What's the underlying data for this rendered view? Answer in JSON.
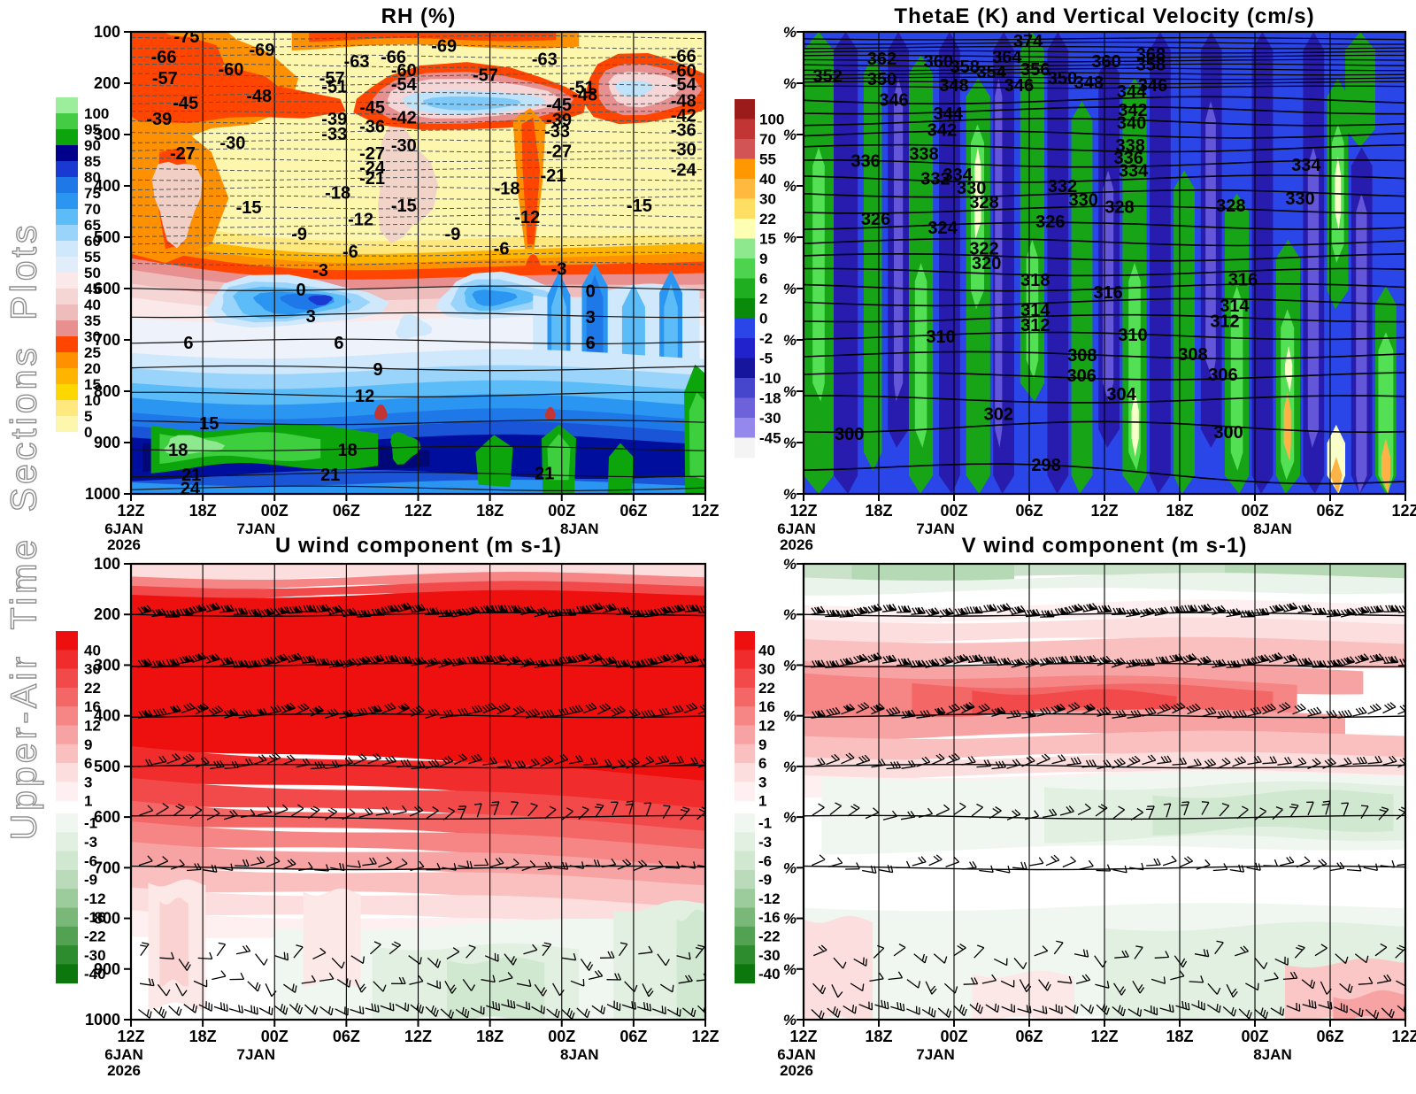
{
  "page": {
    "vertical_label": "Upper-Air Time Sections Plots"
  },
  "time_axis": {
    "ticks": [
      "12Z",
      "18Z",
      "00Z",
      "06Z",
      "12Z",
      "18Z",
      "00Z",
      "06Z",
      "12Z"
    ],
    "date_labels": [
      {
        "tick": 0,
        "text": "6JAN"
      },
      {
        "tick": 2,
        "text": "7JAN"
      },
      {
        "tick": 6,
        "text": "8JAN"
      }
    ],
    "year_label": {
      "tick": 0,
      "text": "2026"
    }
  },
  "pressure_ticks": [
    100,
    200,
    300,
    400,
    500,
    600,
    700,
    800,
    900,
    1000
  ],
  "chart_data": [
    {
      "id": "rh",
      "type": "filled-contour-time-height-section",
      "title": "RH (%)",
      "y_axis": "pressure-ticks",
      "x_axis": "time-ticks",
      "colorbar": {
        "labels": [
          100,
          95,
          90,
          85,
          80,
          75,
          70,
          65,
          60,
          55,
          50,
          45,
          40,
          35,
          30,
          25,
          20,
          15,
          10,
          5,
          0
        ],
        "colors": [
          "#9cee9c",
          "#44cc44",
          "#0ca60c",
          "#00008b",
          "#1939d2",
          "#1f78e8",
          "#2b96f2",
          "#5bbcf8",
          "#9ad4fa",
          "#cfe8fc",
          "#e2edfc",
          "#fbe9e9",
          "#f6d5d5",
          "#efbcbc",
          "#e89090",
          "#ff4500",
          "#ff9000",
          "#ffb400",
          "#ffd700",
          "#ffe97e",
          "#fdf7ae",
          "#ffffff"
        ]
      },
      "dashed_labels": [
        [
          -75,
          0.097,
          0.01
        ],
        [
          -69,
          0.228,
          0.038
        ],
        [
          -69,
          0.545,
          0.03
        ],
        [
          -66,
          0.057,
          0.054
        ],
        [
          -66,
          0.457,
          0.054
        ],
        [
          -66,
          0.962,
          0.052
        ],
        [
          -63,
          0.393,
          0.063
        ],
        [
          -63,
          0.72,
          0.058
        ],
        [
          -60,
          0.174,
          0.08
        ],
        [
          -60,
          0.475,
          0.082
        ],
        [
          -60,
          0.962,
          0.083
        ],
        [
          -57,
          0.059,
          0.1
        ],
        [
          -57,
          0.35,
          0.1
        ],
        [
          -57,
          0.617,
          0.093
        ],
        [
          -54,
          0.475,
          0.113
        ],
        [
          -54,
          0.962,
          0.113
        ],
        [
          -51,
          0.354,
          0.118
        ],
        [
          -51,
          0.785,
          0.12
        ],
        [
          -48,
          0.223,
          0.138
        ],
        [
          -48,
          0.79,
          0.135
        ],
        [
          -48,
          0.962,
          0.148
        ],
        [
          -45,
          0.095,
          0.153
        ],
        [
          -45,
          0.42,
          0.163
        ],
        [
          -45,
          0.745,
          0.157
        ],
        [
          -42,
          0.475,
          0.185
        ],
        [
          -42,
          0.962,
          0.18
        ],
        [
          -39,
          0.049,
          0.188
        ],
        [
          -39,
          0.354,
          0.188
        ],
        [
          -39,
          0.745,
          0.19
        ],
        [
          -36,
          0.42,
          0.204
        ],
        [
          -36,
          0.962,
          0.212
        ],
        [
          -33,
          0.354,
          0.22
        ],
        [
          -33,
          0.742,
          0.215
        ],
        [
          -30,
          0.177,
          0.239
        ],
        [
          -30,
          0.475,
          0.245
        ],
        [
          -30,
          0.962,
          0.254
        ],
        [
          -27,
          0.09,
          0.262
        ],
        [
          -27,
          0.42,
          0.262
        ],
        [
          -27,
          0.745,
          0.258
        ],
        [
          -24,
          0.42,
          0.293
        ],
        [
          -24,
          0.962,
          0.298
        ],
        [
          -21,
          0.42,
          0.316
        ],
        [
          -21,
          0.735,
          0.31
        ],
        [
          -18,
          0.36,
          0.348
        ],
        [
          -18,
          0.655,
          0.338
        ],
        [
          -15,
          0.205,
          0.379
        ],
        [
          -15,
          0.475,
          0.375
        ],
        [
          -15,
          0.885,
          0.375
        ],
        [
          -12,
          0.4,
          0.405
        ],
        [
          -12,
          0.69,
          0.4
        ],
        [
          -9,
          0.293,
          0.437
        ],
        [
          -9,
          0.56,
          0.437
        ],
        [
          -6,
          0.382,
          0.475
        ],
        [
          -6,
          0.645,
          0.468
        ],
        [
          -3,
          0.33,
          0.515
        ],
        [
          -3,
          0.745,
          0.512
        ]
      ],
      "solid_labels": [
        [
          0,
          0.296,
          0.557
        ],
        [
          0,
          0.8,
          0.56
        ],
        [
          3,
          0.313,
          0.615
        ],
        [
          3,
          0.8,
          0.617
        ],
        [
          6,
          0.1,
          0.672
        ],
        [
          6,
          0.362,
          0.672
        ],
        [
          6,
          0.8,
          0.672
        ],
        [
          9,
          0.43,
          0.73
        ],
        [
          12,
          0.407,
          0.787
        ],
        [
          15,
          0.136,
          0.847
        ],
        [
          18,
          0.082,
          0.904
        ],
        [
          18,
          0.377,
          0.904
        ],
        [
          21,
          0.105,
          0.958
        ],
        [
          21,
          0.347,
          0.958
        ],
        [
          21,
          0.72,
          0.955
        ],
        [
          24,
          0.103,
          0.988
        ]
      ]
    },
    {
      "id": "thetae",
      "type": "contour-plus-shaded-section",
      "title": "ThetaE (K) and Vertical Velocity (cm/s)",
      "y_tick_label": "%",
      "x_axis": "time-ticks",
      "colorbar": {
        "labels": [
          100,
          70,
          55,
          40,
          30,
          22,
          15,
          9,
          6,
          2,
          0,
          -2,
          -5,
          -10,
          -18,
          -30,
          -45
        ],
        "colors": [
          "#9b1b1b",
          "#c23535",
          "#d25454",
          "#ff9800",
          "#ffb93e",
          "#ffdf63",
          "#ffffb4",
          "#8ee88e",
          "#4ed34e",
          "#1fae1f",
          "#0a8a0a",
          "#2b46e8",
          "#2222cc",
          "#15159e",
          "#4646cc",
          "#6e62da",
          "#9488ec",
          "#f4f4f4"
        ]
      },
      "contour_labels": [
        [
          352,
          0.04,
          0.095
        ],
        [
          362,
          0.13,
          0.057
        ],
        [
          350,
          0.13,
          0.102
        ],
        [
          346,
          0.15,
          0.147
        ],
        [
          344,
          0.24,
          0.176
        ],
        [
          342,
          0.23,
          0.212
        ],
        [
          360,
          0.224,
          0.063
        ],
        [
          358,
          0.268,
          0.075
        ],
        [
          348,
          0.25,
          0.115
        ],
        [
          354,
          0.312,
          0.086
        ],
        [
          364,
          0.338,
          0.054
        ],
        [
          374,
          0.373,
          0.019
        ],
        [
          346,
          0.358,
          0.115
        ],
        [
          356,
          0.385,
          0.08
        ],
        [
          350,
          0.43,
          0.1
        ],
        [
          348,
          0.474,
          0.109
        ],
        [
          360,
          0.503,
          0.063
        ],
        [
          368,
          0.577,
          0.048
        ],
        [
          358,
          0.577,
          0.07
        ],
        [
          346,
          0.58,
          0.115
        ],
        [
          344,
          0.545,
          0.128
        ],
        [
          342,
          0.547,
          0.169
        ],
        [
          340,
          0.545,
          0.196
        ],
        [
          338,
          0.543,
          0.245
        ],
        [
          336,
          0.54,
          0.272
        ],
        [
          334,
          0.548,
          0.3
        ],
        [
          338,
          0.2,
          0.263
        ],
        [
          336,
          0.103,
          0.279
        ],
        [
          334,
          0.256,
          0.308
        ],
        [
          332,
          0.219,
          0.317
        ],
        [
          330,
          0.279,
          0.337
        ],
        [
          328,
          0.3,
          0.368
        ],
        [
          326,
          0.12,
          0.404
        ],
        [
          324,
          0.231,
          0.423
        ],
        [
          332,
          0.43,
          0.333
        ],
        [
          330,
          0.465,
          0.363
        ],
        [
          328,
          0.525,
          0.378
        ],
        [
          326,
          0.41,
          0.41
        ],
        [
          322,
          0.3,
          0.468
        ],
        [
          320,
          0.304,
          0.5
        ],
        [
          318,
          0.385,
          0.536
        ],
        [
          316,
          0.506,
          0.563
        ],
        [
          314,
          0.385,
          0.602
        ],
        [
          312,
          0.385,
          0.634
        ],
        [
          310,
          0.228,
          0.659
        ],
        [
          310,
          0.547,
          0.655
        ],
        [
          308,
          0.463,
          0.699
        ],
        [
          306,
          0.462,
          0.743
        ],
        [
          304,
          0.528,
          0.784
        ],
        [
          302,
          0.324,
          0.827
        ],
        [
          300,
          0.076,
          0.87
        ],
        [
          300,
          0.706,
          0.866
        ],
        [
          298,
          0.403,
          0.937
        ],
        [
          308,
          0.647,
          0.697
        ],
        [
          306,
          0.697,
          0.741
        ],
        [
          316,
          0.73,
          0.535
        ],
        [
          314,
          0.716,
          0.592
        ],
        [
          312,
          0.7,
          0.625
        ],
        [
          334,
          0.835,
          0.287
        ],
        [
          330,
          0.825,
          0.36
        ],
        [
          328,
          0.71,
          0.375
        ]
      ]
    },
    {
      "id": "u",
      "type": "filled-contour-with-wind-barbs",
      "title": "U wind component (m s-1)",
      "y_axis": "pressure-ticks",
      "x_axis": "time-ticks",
      "colorbar": {
        "labels_positive": [
          40,
          30,
          22,
          16,
          12,
          9,
          6,
          3,
          1
        ],
        "labels_negative": [
          -1,
          -3,
          -6,
          -9,
          -12,
          -16,
          -22,
          -30,
          -40
        ],
        "colors_positive": [
          "#ee0f0f",
          "#f02c2c",
          "#f24a4a",
          "#f46767",
          "#f68585",
          "#f8a3a3",
          "#fac0c0",
          "#fcdede",
          "#fef0f0"
        ],
        "colors_negative": [
          "#f0f7f0",
          "#e2f0e2",
          "#d0e7d0",
          "#b9dbb9",
          "#9ccb9c",
          "#79b879",
          "#53a253",
          "#2d8c2d",
          "#0c770c"
        ]
      },
      "barb_levels_hpa": [
        200,
        300,
        400,
        500,
        600,
        700,
        860,
        925,
        975
      ]
    },
    {
      "id": "v",
      "type": "filled-contour-with-wind-barbs",
      "title": "V wind component (m s-1)",
      "y_tick_label": "%",
      "x_axis": "time-ticks",
      "colorbar": {
        "labels_positive": [
          40,
          30,
          22,
          16,
          12,
          9,
          6,
          3,
          1
        ],
        "labels_negative": [
          -1,
          -3,
          -6,
          -9,
          -12,
          -16,
          -22,
          -30,
          -40
        ],
        "colors_positive": [
          "#ee0f0f",
          "#f02c2c",
          "#f24a4a",
          "#f46767",
          "#f68585",
          "#f8a3a3",
          "#fac0c0",
          "#fcdede",
          "#fef0f0"
        ],
        "colors_negative": [
          "#f0f7f0",
          "#e2f0e2",
          "#d0e7d0",
          "#b9dbb9",
          "#9ccb9c",
          "#79b879",
          "#53a253",
          "#2d8c2d",
          "#0c770c"
        ]
      },
      "barb_levels_hpa": [
        200,
        300,
        400,
        500,
        600,
        700,
        860,
        925,
        975
      ]
    }
  ]
}
